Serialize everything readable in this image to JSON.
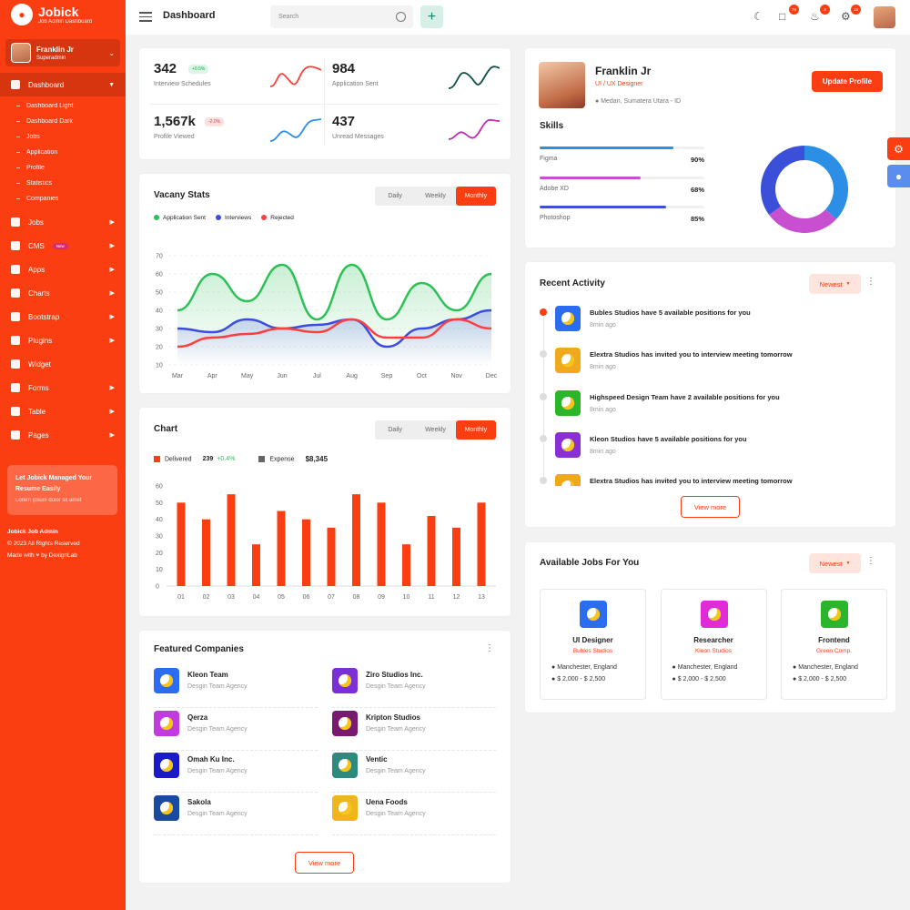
{
  "app": {
    "name": "Jobick",
    "subtitle": "Job Admin Dashboard"
  },
  "user": {
    "name": "Franklin Jr",
    "role": "Superadmin"
  },
  "nav": {
    "dashboard": "Dashboard",
    "sub": [
      "Dashboard Light",
      "Dashboard Dark",
      "Jobs",
      "Application",
      "Profile",
      "Statistics",
      "Companies"
    ],
    "items": [
      "Jobs",
      "CMS",
      "Apps",
      "Charts",
      "Bootstrap",
      "Plugins",
      "Widget",
      "Forms",
      "Table",
      "Pages"
    ],
    "new_badge": "New"
  },
  "promo": {
    "title": "Let Jobick Managed Your Resume Easily",
    "sub": "Lorem ipsum dolor sit amet"
  },
  "sidebar_footer": {
    "line1": "Jobick Job Admin",
    "line2": "© 2023 All Rights Reserved",
    "made": "Made with",
    "by": "by DexignLab"
  },
  "topbar": {
    "title": "Dashboard",
    "search_placeholder": "Search",
    "badges": [
      "76",
      "4",
      "15"
    ]
  },
  "stats": [
    {
      "value": "342",
      "label": "Interview Schedules",
      "change": "+0.5%"
    },
    {
      "value": "984",
      "label": "Application Sent",
      "change": ""
    },
    {
      "value": "1,567k",
      "label": "Profile Viewed",
      "change": "-2.0%"
    },
    {
      "value": "437",
      "label": "Unread Messages",
      "change": ""
    }
  ],
  "vacancy": {
    "title": "Vacany Stats",
    "tabs": [
      "Daily",
      "Weekly",
      "Monthly"
    ],
    "legend": [
      "Application Sent",
      "Interviews",
      "Rejected"
    ]
  },
  "chart2": {
    "title": "Chart",
    "tabs": [
      "Daily",
      "Weekly",
      "Monthly"
    ],
    "legend_delivered": "Delivered",
    "delivered_value": "239",
    "delivered_change": "+0.4%",
    "legend_expense": "Expense",
    "expense_value": "$8,345"
  },
  "chart_data": [
    {
      "type": "line",
      "categories": [
        "Mar",
        "Apr",
        "May",
        "Jun",
        "Jul",
        "Aug",
        "Sep",
        "Oct",
        "Nov",
        "Dec"
      ],
      "ylim": [
        10,
        70
      ],
      "yticks": [
        10,
        20,
        30,
        40,
        50,
        60,
        70
      ],
      "series": [
        {
          "name": "Application Sent",
          "color": "#2bc155",
          "values": [
            40,
            60,
            45,
            65,
            35,
            65,
            35,
            55,
            40,
            60
          ]
        },
        {
          "name": "Interviews",
          "color": "#3b4ce2",
          "values": [
            30,
            28,
            35,
            30,
            32,
            35,
            20,
            30,
            35,
            40
          ]
        },
        {
          "name": "Rejected",
          "color": "#ff3e3e",
          "values": [
            20,
            25,
            27,
            30,
            28,
            35,
            25,
            25,
            35,
            30
          ]
        }
      ]
    },
    {
      "type": "bar",
      "categories": [
        "01",
        "02",
        "03",
        "04",
        "05",
        "06",
        "07",
        "08",
        "09",
        "10",
        "11",
        "12",
        "13"
      ],
      "ylim": [
        0,
        60
      ],
      "yticks": [
        0,
        10,
        20,
        30,
        40,
        50,
        60
      ],
      "series": [
        {
          "name": "Delivered",
          "color": "#fb3d12",
          "values": [
            50,
            40,
            55,
            25,
            45,
            40,
            35,
            55,
            50,
            25,
            42,
            35,
            50
          ]
        }
      ]
    },
    {
      "type": "pie",
      "categories": [
        "Figma",
        "Adobe XD",
        "Photoshop"
      ],
      "values": [
        90,
        68,
        85
      ]
    }
  ],
  "companies": {
    "title": "Featured Companies",
    "items": [
      {
        "name": "Kleon Team",
        "sub": "Desgin Team Agency",
        "color": "#2b6cf0"
      },
      {
        "name": "Ziro Studios Inc.",
        "sub": "Desgin Team Agency",
        "color": "#7b2fd6"
      },
      {
        "name": "Qerza",
        "sub": "Desgin Team Agency",
        "color": "#c13be0"
      },
      {
        "name": "Kripton Studios",
        "sub": "Desgin Team Agency",
        "color": "#7a1a6f"
      },
      {
        "name": "Omah Ku Inc.",
        "sub": "Desgin Team Agency",
        "color": "#1a1ac9"
      },
      {
        "name": "Ventic",
        "sub": "Desgin Team Agency",
        "color": "#2d8a7c"
      },
      {
        "name": "Sakola",
        "sub": "Desgin Team Agency",
        "color": "#1a4aa0"
      },
      {
        "name": "Uena Foods",
        "sub": "Desgin Team Agency",
        "color": "#f0b51c"
      }
    ],
    "view_more": "View more"
  },
  "profile": {
    "name": "Franklin Jr",
    "role": "UI / UX Designer",
    "location": "Medan, Sumatera Utara - ID",
    "update": "Update Profile",
    "skills_title": "Skills",
    "skills": [
      {
        "name": "Figma",
        "value": "90%",
        "pct": 90,
        "color": "#2b8fe6"
      },
      {
        "name": "Adobe XD",
        "value": "68%",
        "pct": 68,
        "color": "#c84fd0"
      },
      {
        "name": "Photoshop",
        "value": "85%",
        "pct": 85,
        "color": "#3b4fd8"
      }
    ]
  },
  "activity": {
    "title": "Recent Activity",
    "filter": "Newest",
    "items": [
      {
        "text": "Bubles Studios have 5 available positions for you",
        "time": "8min ago",
        "color": "#2b6cf0"
      },
      {
        "text": "Elextra Studios has invited you to interview meeting tomorrow",
        "time": "8min ago",
        "color": "#f0a81c"
      },
      {
        "text": "Highspeed Design Team have 2 available positions for you",
        "time": "8min ago",
        "color": "#2bb52b"
      },
      {
        "text": "Kleon Studios have 5 available positions for you",
        "time": "8min ago",
        "color": "#8a2fd6"
      },
      {
        "text": "Elextra Studios has invited you to interview meeting tomorrow",
        "time": "",
        "color": "#f0a81c"
      }
    ],
    "view_more": "View more"
  },
  "jobs": {
    "title": "Available Jobs For You",
    "filter": "Newest",
    "items": [
      {
        "title": "UI Designer",
        "company": "Bubles Studios",
        "location": "Manchester, England",
        "salary": "$ 2,000 - $ 2,500",
        "color": "#2b6cf0"
      },
      {
        "title": "Researcher",
        "company": "Kleon Studios",
        "location": "Manchester, England",
        "salary": "$ 2,000 - $ 2,500",
        "color": "#e02bd6"
      },
      {
        "title": "Frontend",
        "company": "Green Comp.",
        "location": "Manchester, England",
        "salary": "$ 2,000 - $ 2,500",
        "color": "#2bb52b"
      }
    ]
  }
}
